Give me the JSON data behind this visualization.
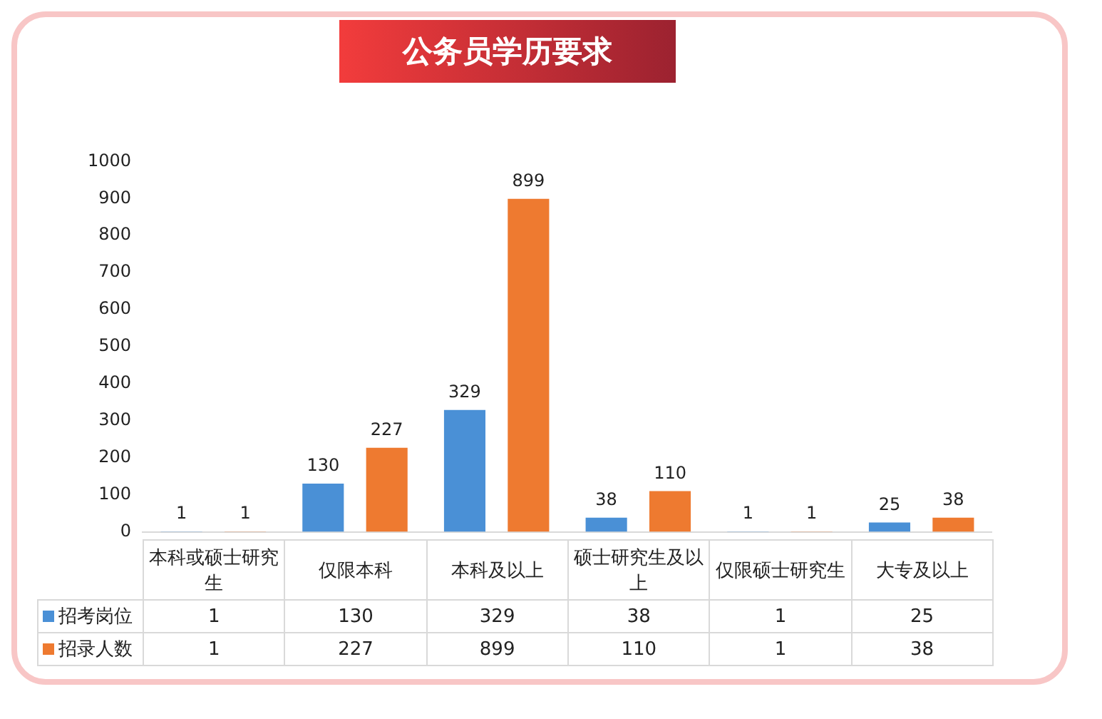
{
  "chart_data": {
    "type": "bar",
    "title": "公务员学历要求",
    "categories": [
      "本科或硕士研究生",
      "仅限本科",
      "本科及以上",
      "硕士研究生及以上",
      "仅限硕士研究生",
      "大专及以上"
    ],
    "series": [
      {
        "name": "招考岗位",
        "color": "#4a90d6",
        "values": [
          1,
          130,
          329,
          38,
          1,
          25
        ],
        "value_labels": [
          "1",
          "130",
          "329",
          "38",
          "1",
          "25"
        ]
      },
      {
        "name": "招录人数",
        "color": "#ee7a30",
        "values": [
          1,
          227,
          899,
          110,
          1,
          38
        ],
        "value_labels": [
          "1",
          "227",
          "899",
          "110",
          "1",
          "38"
        ]
      }
    ],
    "ylim": [
      0,
      1000
    ],
    "yticks": [
      0,
      100,
      200,
      300,
      400,
      500,
      600,
      700,
      800,
      900,
      1000
    ],
    "legend": "bottom"
  }
}
